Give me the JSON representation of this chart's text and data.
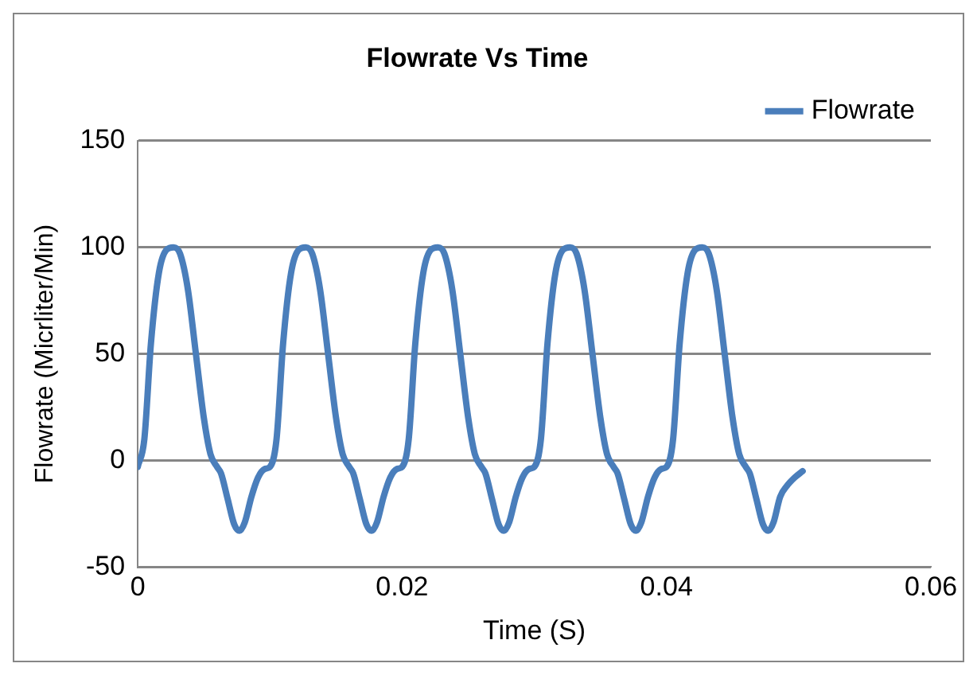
{
  "chart_data": {
    "type": "line",
    "title": "Flowrate Vs Time",
    "xlabel": "Time (S)",
    "ylabel": "Flowrate (Micrliter/Min)",
    "xlim": [
      0,
      0.06
    ],
    "xticks": [
      0,
      0.02,
      0.04,
      0.06
    ],
    "ylim": [
      -50,
      150
    ],
    "yticks": [
      -50,
      0,
      50,
      100,
      150
    ],
    "grid": "y",
    "legend": "top right",
    "marker": "none",
    "line_style": "solid",
    "series": [
      {
        "name": "Flowrate",
        "color": "#4a7ebb",
        "x": [
          0,
          0.0005,
          0.001,
          0.0016,
          0.0022,
          0.0027,
          0.0032,
          0.0038,
          0.0044,
          0.005,
          0.0055,
          0.006,
          0.0063,
          0.0068,
          0.0073,
          0.0077,
          0.0081,
          0.0086,
          0.0091,
          0.0096,
          0.01,
          0.0105,
          0.011,
          0.0116,
          0.0122,
          0.0127,
          0.0132,
          0.0138,
          0.0144,
          0.015,
          0.0155,
          0.016,
          0.0163,
          0.0168,
          0.0173,
          0.0177,
          0.0181,
          0.0186,
          0.0191,
          0.0196,
          0.02,
          0.0205,
          0.021,
          0.0216,
          0.0222,
          0.0227,
          0.0232,
          0.0238,
          0.0244,
          0.025,
          0.0255,
          0.026,
          0.0263,
          0.0268,
          0.0273,
          0.0277,
          0.0281,
          0.0286,
          0.0291,
          0.0296,
          0.03,
          0.0305,
          0.031,
          0.0316,
          0.0322,
          0.0327,
          0.0332,
          0.0338,
          0.0344,
          0.035,
          0.0355,
          0.036,
          0.0363,
          0.0368,
          0.0373,
          0.0377,
          0.0381,
          0.0386,
          0.0391,
          0.0396,
          0.04,
          0.0405,
          0.041,
          0.0416,
          0.0422,
          0.0427,
          0.0432,
          0.0438,
          0.0444,
          0.045,
          0.0455,
          0.046,
          0.0463,
          0.0468,
          0.0473,
          0.0477,
          0.0481,
          0.0486,
          0.0491,
          0.0497,
          0.0503
        ],
        "values": [
          -3,
          10,
          55,
          88,
          99,
          100,
          97,
          80,
          50,
          20,
          3,
          -3,
          -6,
          -18,
          -30,
          -33,
          -29,
          -17,
          -8,
          -4,
          -3,
          10,
          55,
          88,
          99,
          100,
          97,
          80,
          50,
          20,
          3,
          -3,
          -6,
          -18,
          -30,
          -33,
          -29,
          -17,
          -8,
          -4,
          -3,
          10,
          55,
          88,
          99,
          100,
          97,
          80,
          50,
          20,
          3,
          -3,
          -6,
          -18,
          -30,
          -33,
          -29,
          -17,
          -8,
          -4,
          -3,
          10,
          55,
          88,
          99,
          100,
          97,
          80,
          50,
          20,
          3,
          -3,
          -6,
          -18,
          -30,
          -33,
          -29,
          -17,
          -8,
          -4,
          -3,
          10,
          55,
          88,
          99,
          100,
          97,
          80,
          50,
          20,
          3,
          -3,
          -6,
          -18,
          -30,
          -33,
          -29,
          -17,
          -12,
          -8,
          -5
        ]
      }
    ]
  }
}
